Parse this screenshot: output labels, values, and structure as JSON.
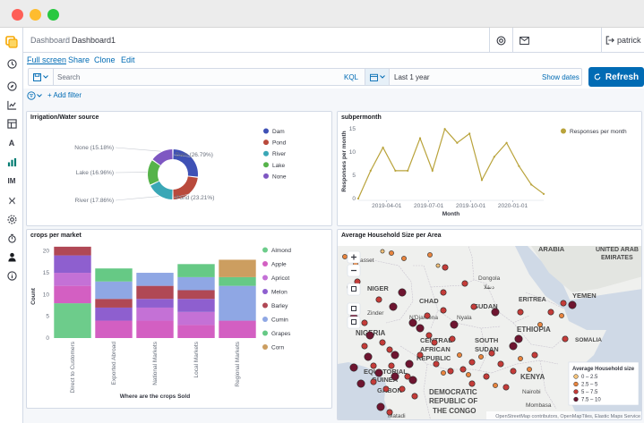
{
  "app": {
    "user": "patrick",
    "breadcrumb": [
      "Dashboard",
      "Dashboard1"
    ]
  },
  "menu": {
    "items": [
      "Full screen",
      "Share",
      "Clone",
      "Edit"
    ]
  },
  "query": {
    "placeholder": "Search",
    "language": "KQL",
    "time_range": "Last 1 year",
    "show_dates": "Show dates",
    "refresh": "Refresh",
    "add_filter": "+ Add filter"
  },
  "panels": {
    "donut_title": "Irrigation/Water source",
    "line_title": "subpermonth",
    "bar_title": "crops per market",
    "map_title": "Average Household Size per Area"
  },
  "chart_data": [
    {
      "type": "pie",
      "title": "Irrigation/Water source",
      "labels": [
        "Dam",
        "Pond",
        "River",
        "Lake",
        "None"
      ],
      "values": [
        26.79,
        23.21,
        17.86,
        16.96,
        15.18
      ],
      "slice_labels": [
        "Dam (26.79%)",
        "Pond (23.21%)",
        "River (17.86%)",
        "Lake (16.96%)",
        "None (15.18%)"
      ],
      "colors": [
        "#3f51b5",
        "#b94a3c",
        "#3aa7b6",
        "#56b34a",
        "#7e57c2"
      ],
      "legend_position": "right"
    },
    {
      "type": "line",
      "title": "subpermonth",
      "xlabel": "Month",
      "ylabel": "Responses per month",
      "series": [
        {
          "name": "Responses per month",
          "values": [
            0,
            6,
            11,
            6,
            6,
            13,
            6,
            15,
            12,
            14,
            4,
            9,
            12,
            7,
            3,
            1
          ],
          "color": "#b9a33b"
        }
      ],
      "x_tick_labels": [
        "2019-04-01",
        "2019-07-01",
        "2019-10-01",
        "2020-01-01"
      ],
      "x_tick_index": [
        2.3,
        5.7,
        9.1,
        12.5
      ],
      "y_ticks": [
        0,
        5,
        10,
        15
      ],
      "ylim": [
        0,
        16
      ],
      "legend_position": "top-right"
    },
    {
      "type": "bar",
      "title": "crops per market",
      "xlabel": "Where are the crops Sold",
      "ylabel": "Count",
      "stacked": true,
      "categories": [
        "Direct to Customers",
        "Exported Abroad",
        "National Markets",
        "Local Markets",
        "Regional Markets"
      ],
      "series": [
        {
          "name": "Almond",
          "color": "#6dcc8b",
          "values": [
            8,
            0,
            0,
            0,
            0
          ]
        },
        {
          "name": "Apple",
          "color": "#d35fc2",
          "values": [
            4,
            4,
            4,
            3,
            4
          ]
        },
        {
          "name": "Apricot",
          "color": "#c471d6",
          "values": [
            3,
            0,
            3,
            3,
            0
          ]
        },
        {
          "name": "Melon",
          "color": "#8e5fcf",
          "values": [
            4,
            3,
            2,
            3,
            0
          ]
        },
        {
          "name": "Barley",
          "color": "#b04855",
          "values": [
            2,
            2,
            3,
            2,
            0
          ]
        },
        {
          "name": "Cumin",
          "color": "#8fa7e4",
          "values": [
            0,
            4,
            3,
            3,
            8
          ]
        },
        {
          "name": "Grapes",
          "color": "#66c985",
          "values": [
            0,
            3,
            0,
            3,
            2
          ]
        },
        {
          "name": "Corn",
          "color": "#cc9e60",
          "values": [
            0,
            0,
            0,
            0,
            4
          ]
        }
      ],
      "y_ticks": [
        0,
        5,
        10,
        15,
        20
      ],
      "ylim": [
        0,
        22
      ],
      "legend_position": "right"
    }
  ],
  "map": {
    "title": "Average Household Size per Area",
    "labels": [
      {
        "text": "ARABIA",
        "bold": true
      },
      {
        "text": "UNITED ARAB",
        "bold": true
      },
      {
        "text": "EMIRATES",
        "bold": true
      },
      {
        "text": "Dongola",
        "bold": false
      },
      {
        "text": "دنقلا",
        "bold": false
      },
      {
        "text": "NIGER",
        "bold": true
      },
      {
        "text": "CHAD",
        "bold": true
      },
      {
        "text": "ERITREA",
        "bold": true
      },
      {
        "text": "YEMEN",
        "bold": true
      },
      {
        "text": "SUDAN",
        "bold": true
      },
      {
        "text": "Nyala",
        "bold": false
      },
      {
        "text": "N'Djamena",
        "bold": false
      },
      {
        "text": "ETHIOPIA",
        "bold": true
      },
      {
        "text": "SOMALIA",
        "bold": true
      },
      {
        "text": "NIGERIA",
        "bold": true
      },
      {
        "text": "CENTRAL",
        "bold": true
      },
      {
        "text": "AFRICAN",
        "bold": true
      },
      {
        "text": "REPUBLIC",
        "bold": true
      },
      {
        "text": "SOUTH",
        "bold": true
      },
      {
        "text": "SUDAN",
        "bold": true
      },
      {
        "text": "EQUATORIAL",
        "bold": true
      },
      {
        "text": "GUINEA",
        "bold": true
      },
      {
        "text": "GABON",
        "bold": true
      },
      {
        "text": "KENYA",
        "bold": true
      },
      {
        "text": "DEMOCRATIC",
        "bold": true
      },
      {
        "text": "REPUBLIC OF",
        "bold": true
      },
      {
        "text": "THE CONGO",
        "bold": true
      },
      {
        "text": "Nairobi",
        "bold": false
      },
      {
        "text": "Mombasa",
        "bold": false
      },
      {
        "text": "Matadi",
        "bold": false
      },
      {
        "text": "Zinder",
        "bold": false
      },
      {
        "text": "asset",
        "bold": false
      }
    ],
    "legend_title": "Average Household size",
    "legend": [
      {
        "label": "0 – 2.5",
        "color": "#f3c27a"
      },
      {
        "label": "2.5 – 5",
        "color": "#e8843e"
      },
      {
        "label": "5 – 7.5",
        "color": "#c43c39"
      },
      {
        "label": "7.5 – 10",
        "color": "#6e1530"
      }
    ],
    "attribution": "OpenStreetMap contributors, OpenMapTiles, Elastic Maps Service"
  }
}
